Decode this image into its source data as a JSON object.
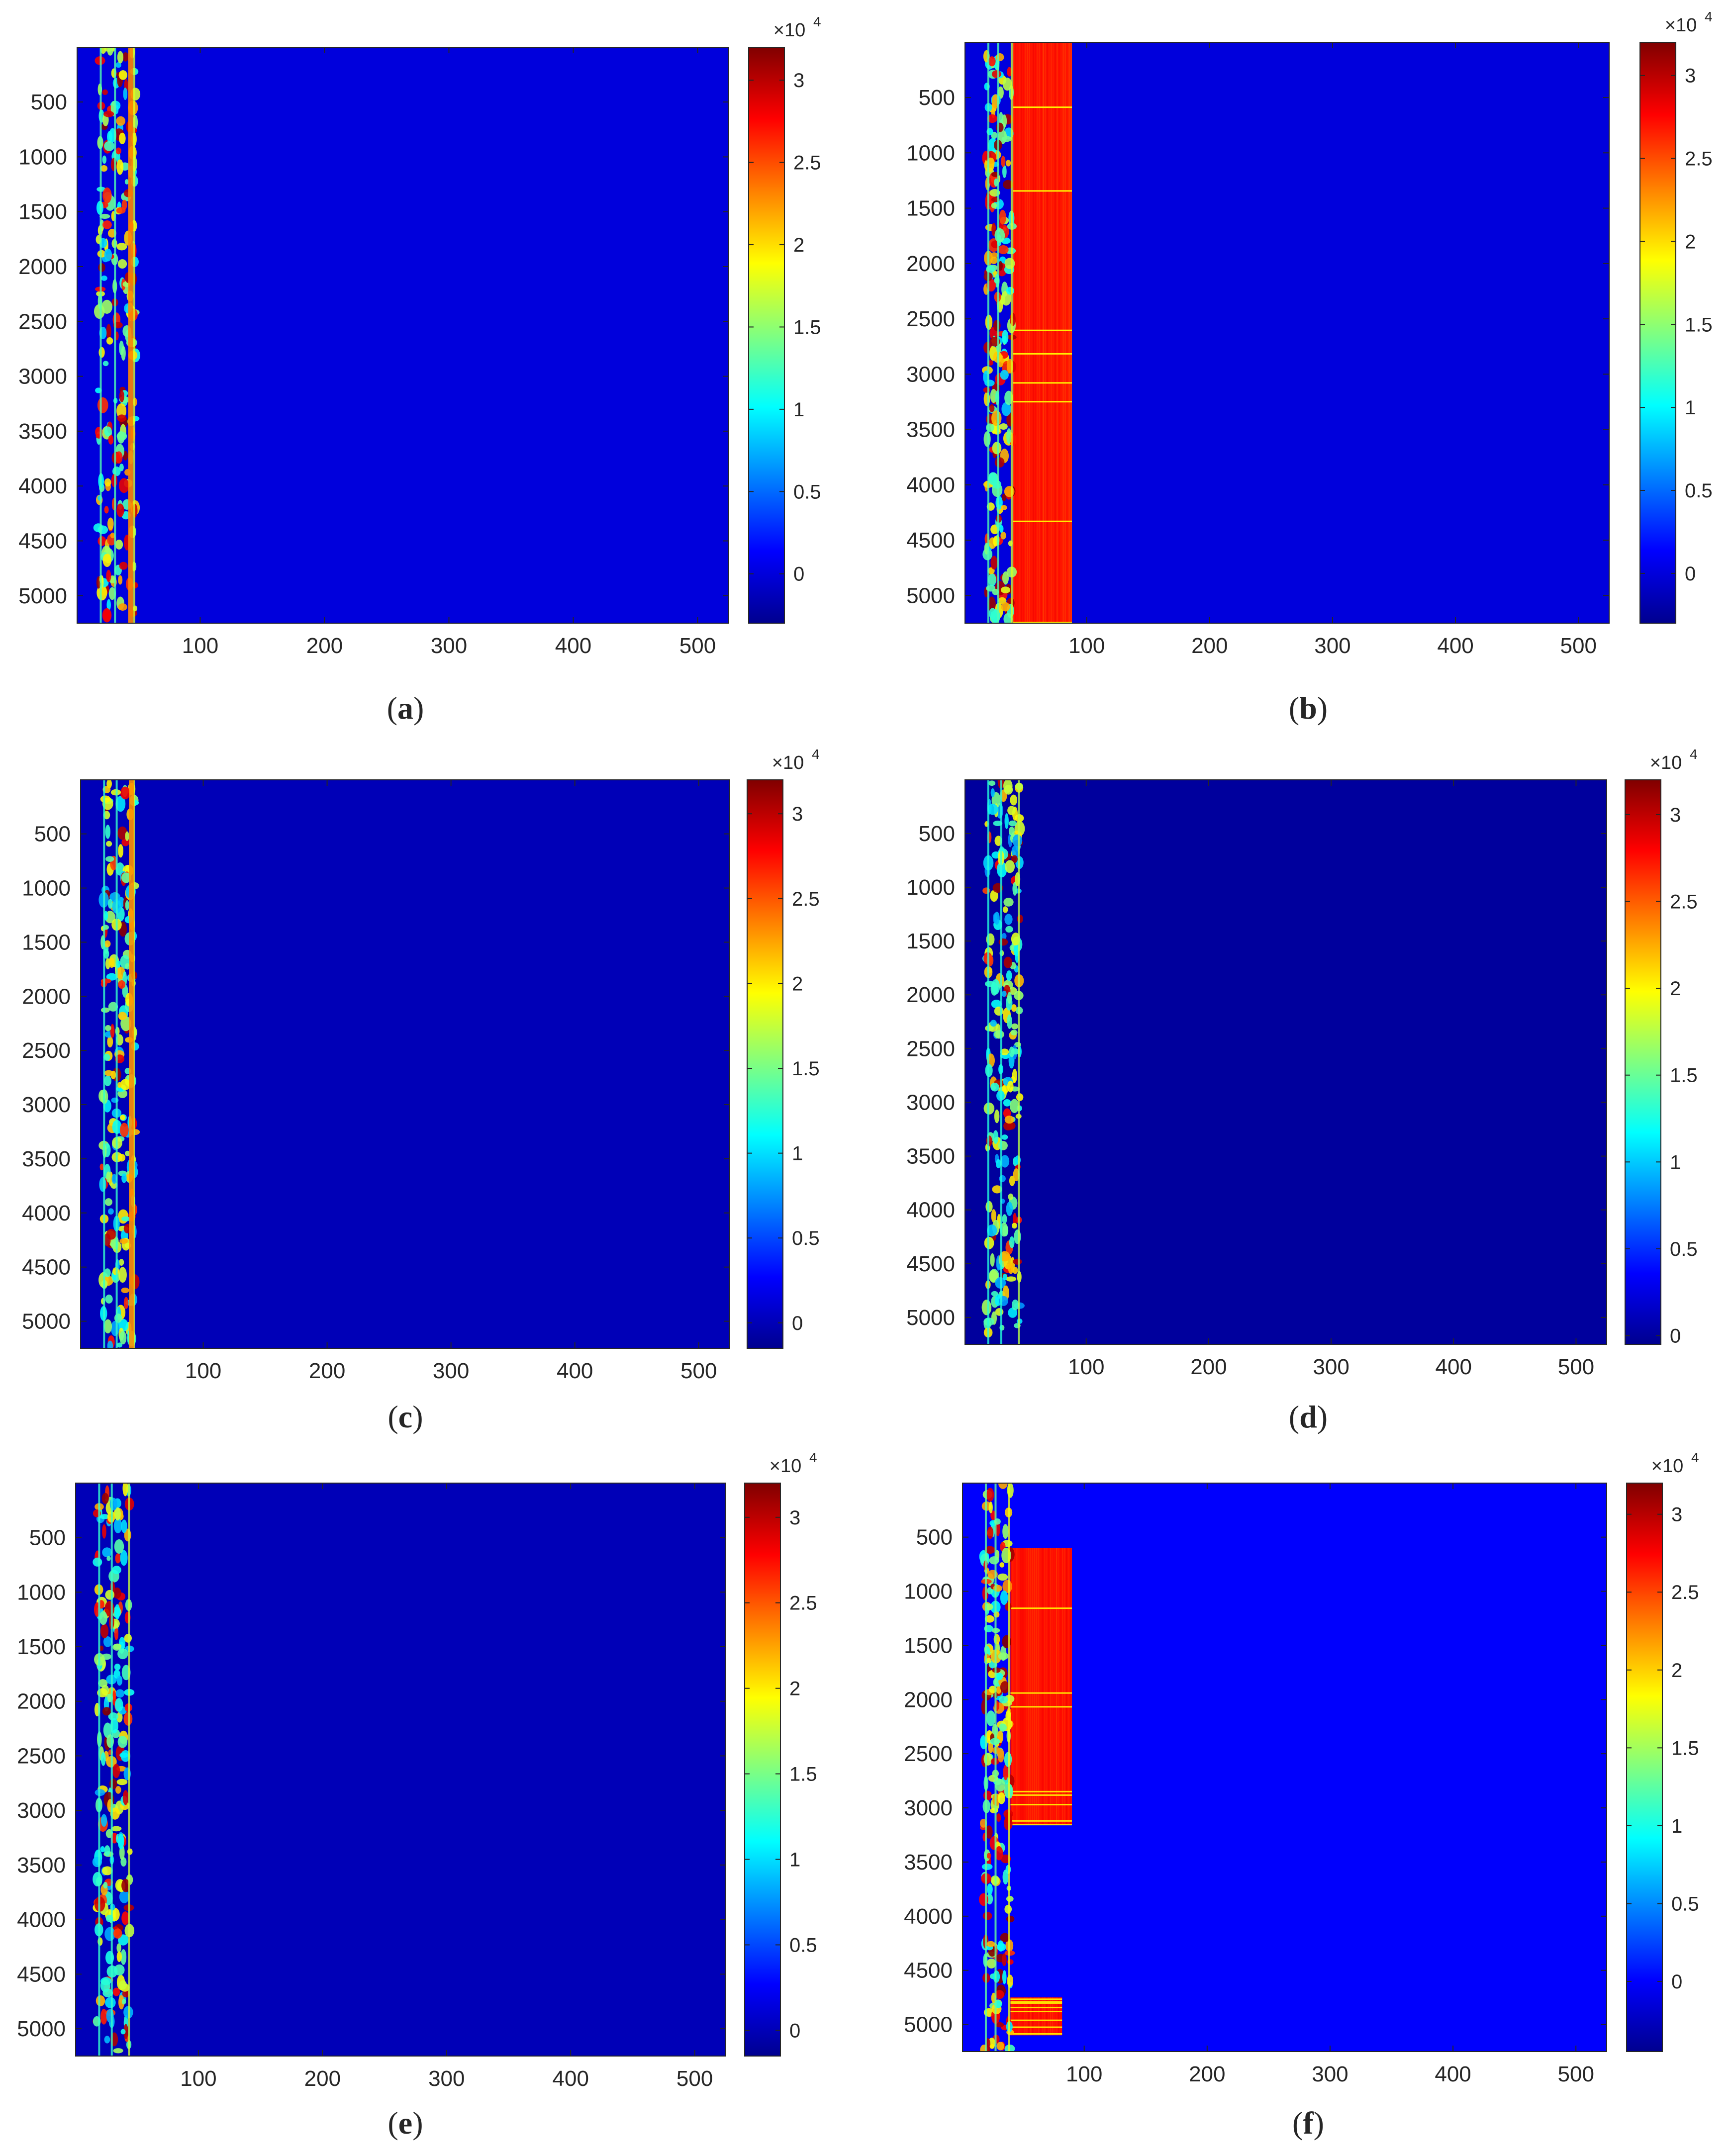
{
  "colormap": [
    "#00008f",
    "#0000ff",
    "#0080ff",
    "#00ffff",
    "#80ff80",
    "#ffff00",
    "#ff8000",
    "#ff0000",
    "#800000"
  ],
  "background_color": "#1e3cd2",
  "chart_data": [
    {
      "panel": "a",
      "type": "heatmap",
      "caption_letter": "a",
      "xlim": [
        1,
        525
      ],
      "ylim": [
        1,
        5250
      ],
      "xticks": [
        100,
        200,
        300,
        400,
        500
      ],
      "xtick_labels": [
        "100",
        "200",
        "300",
        "400",
        "500"
      ],
      "yticks": [
        500,
        1000,
        1500,
        2000,
        2500,
        3000,
        3500,
        4000,
        4500,
        5000
      ],
      "ytick_labels": [
        "500",
        "1000",
        "1500",
        "2000",
        "2500",
        "3000",
        "3500",
        "4000",
        "4500",
        "5000"
      ],
      "clim": [
        -3000,
        32000
      ],
      "cticks": [
        0,
        5000,
        10000,
        15000,
        20000,
        25000,
        30000
      ],
      "ctick_labels": [
        "0",
        "0.5",
        "1",
        "1.5",
        "2",
        "2.5",
        "3"
      ],
      "exponent_base": "×10",
      "exponent_power": "4",
      "active_band_x": [
        18,
        48
      ],
      "secondary_edge_x": [
        42,
        46
      ],
      "peak_fraction": 0.35
    },
    {
      "panel": "b",
      "type": "heatmap",
      "caption_letter": "b",
      "xlim": [
        1,
        525
      ],
      "ylim": [
        1,
        5250
      ],
      "xticks": [
        100,
        200,
        300,
        400,
        500
      ],
      "xtick_labels": [
        "100",
        "200",
        "300",
        "400",
        "500"
      ],
      "yticks": [
        500,
        1000,
        1500,
        2000,
        2500,
        3000,
        3500,
        4000,
        4500,
        5000
      ],
      "ytick_labels": [
        "500",
        "1000",
        "1500",
        "2000",
        "2500",
        "3000",
        "3500",
        "4000",
        "4500",
        "5000"
      ],
      "clim": [
        -3000,
        32000
      ],
      "cticks": [
        0,
        5000,
        10000,
        15000,
        20000,
        25000,
        30000
      ],
      "ctick_labels": [
        "0",
        "0.5",
        "1",
        "1.5",
        "2",
        "2.5",
        "3"
      ],
      "exponent_base": "×10",
      "exponent_power": "4",
      "active_band_x": [
        18,
        40
      ],
      "saturated_region": {
        "x": [
          40,
          88
        ],
        "y": [
          1,
          5250
        ],
        "value": 27000
      },
      "peak_fraction": 0.35
    },
    {
      "panel": "c",
      "type": "heatmap",
      "caption_letter": "c",
      "xlim": [
        1,
        525
      ],
      "ylim": [
        1,
        5250
      ],
      "xticks": [
        100,
        200,
        300,
        400,
        500
      ],
      "xtick_labels": [
        "100",
        "200",
        "300",
        "400",
        "500"
      ],
      "yticks": [
        500,
        1000,
        1500,
        2000,
        2500,
        3000,
        3500,
        4000,
        4500,
        5000
      ],
      "ytick_labels": [
        "500",
        "1000",
        "1500",
        "2000",
        "2500",
        "3000",
        "3500",
        "4000",
        "4500",
        "5000"
      ],
      "clim": [
        -1500,
        32000
      ],
      "cticks": [
        0,
        5000,
        10000,
        15000,
        20000,
        25000,
        30000
      ],
      "ctick_labels": [
        "0",
        "0.5",
        "1",
        "1.5",
        "2",
        "2.5",
        "3"
      ],
      "exponent_base": "×10",
      "exponent_power": "4",
      "active_band_x": [
        18,
        45
      ],
      "secondary_edge_x": [
        40,
        44
      ],
      "peak_fraction": 0.2
    },
    {
      "panel": "d",
      "type": "heatmap",
      "caption_letter": "d",
      "xlim": [
        1,
        525
      ],
      "ylim": [
        1,
        5250
      ],
      "xticks": [
        100,
        200,
        300,
        400,
        500
      ],
      "xtick_labels": [
        "100",
        "200",
        "300",
        "400",
        "500"
      ],
      "yticks": [
        500,
        1000,
        1500,
        2000,
        2500,
        3000,
        3500,
        4000,
        4500,
        5000
      ],
      "ytick_labels": [
        "500",
        "1000",
        "1500",
        "2000",
        "2500",
        "3000",
        "3500",
        "4000",
        "4500",
        "5000"
      ],
      "clim": [
        -500,
        32000
      ],
      "cticks": [
        0,
        5000,
        10000,
        15000,
        20000,
        25000,
        30000
      ],
      "ctick_labels": [
        "0",
        "0.5",
        "1",
        "1.5",
        "2",
        "2.5",
        "3"
      ],
      "exponent_base": "×10",
      "exponent_power": "4",
      "active_band_x": [
        18,
        46
      ],
      "peak_fraction": 0.12
    },
    {
      "panel": "e",
      "type": "heatmap",
      "caption_letter": "e",
      "xlim": [
        1,
        525
      ],
      "ylim": [
        1,
        5250
      ],
      "xticks": [
        100,
        200,
        300,
        400,
        500
      ],
      "xtick_labels": [
        "100",
        "200",
        "300",
        "400",
        "500"
      ],
      "yticks": [
        500,
        1000,
        1500,
        2000,
        2500,
        3000,
        3500,
        4000,
        4500,
        5000
      ],
      "ytick_labels": [
        "500",
        "1000",
        "1500",
        "2000",
        "2500",
        "3000",
        "3500",
        "4000",
        "4500",
        "5000"
      ],
      "clim": [
        -1500,
        32000
      ],
      "cticks": [
        0,
        5000,
        10000,
        15000,
        20000,
        25000,
        30000
      ],
      "ctick_labels": [
        "0",
        "0.5",
        "1",
        "1.5",
        "2",
        "2.5",
        "3"
      ],
      "exponent_base": "×10",
      "exponent_power": "4",
      "active_band_x": [
        18,
        45
      ],
      "peak_fraction": 0.25
    },
    {
      "panel": "f",
      "type": "heatmap",
      "caption_letter": "f",
      "xlim": [
        1,
        525
      ],
      "ylim": [
        1,
        5250
      ],
      "xticks": [
        100,
        200,
        300,
        400,
        500
      ],
      "xtick_labels": [
        "100",
        "200",
        "300",
        "400",
        "500"
      ],
      "yticks": [
        500,
        1000,
        1500,
        2000,
        2500,
        3000,
        3500,
        4000,
        4500,
        5000
      ],
      "ytick_labels": [
        "500",
        "1000",
        "1500",
        "2000",
        "2500",
        "3000",
        "3500",
        "4000",
        "4500",
        "5000"
      ],
      "clim": [
        -4500,
        32000
      ],
      "cticks": [
        0,
        5000,
        10000,
        15000,
        20000,
        25000,
        30000
      ],
      "ctick_labels": [
        "0",
        "0.5",
        "1",
        "1.5",
        "2",
        "2.5",
        "3"
      ],
      "exponent_base": "×10",
      "exponent_power": "4",
      "active_band_x": [
        18,
        40
      ],
      "saturated_regions": [
        {
          "x": [
            40,
            90
          ],
          "y": [
            600,
            3150
          ],
          "value": 27000
        },
        {
          "x": [
            40,
            82
          ],
          "y": [
            4750,
            5100
          ],
          "value": 27000
        }
      ],
      "peak_fraction": 0.3
    }
  ]
}
